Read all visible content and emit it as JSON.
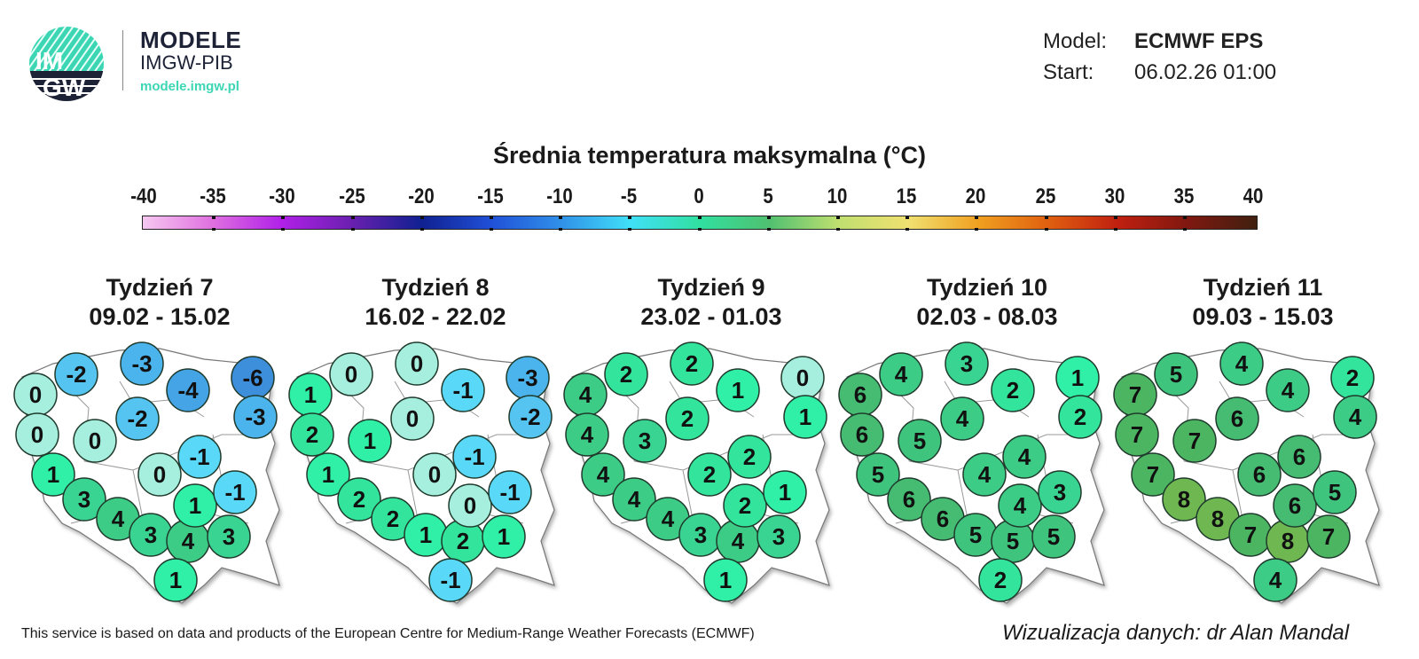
{
  "header": {
    "logo_text_top": "IM",
    "logo_text_bottom": "GW",
    "brand_title": "MODELE",
    "brand_subtitle": "IMGW-PIB",
    "brand_url": "modele.imgw.pl",
    "model_label": "Model:",
    "model_value": "ECMWF EPS",
    "start_label": "Start:",
    "start_value": "06.02.26 01:00"
  },
  "title": "Średnia temperatura maksymalna (°C)",
  "colorbar": {
    "ticks": [
      "-40",
      "-35",
      "-30",
      "-25",
      "-20",
      "-15",
      "-10",
      "-5",
      "0",
      "5",
      "10",
      "15",
      "20",
      "25",
      "30",
      "35",
      "40"
    ],
    "colors": [
      "#f6c8f0",
      "#e070e0",
      "#b020e8",
      "#6a20b0",
      "#102090",
      "#2050d8",
      "#3090e8",
      "#40e0f8",
      "#30e0a0",
      "#50c070",
      "#c0e070",
      "#f0e070",
      "#f0a020",
      "#e06010",
      "#c02010",
      "#801810",
      "#402010"
    ]
  },
  "value_colors": {
    "-6": "#3d8fdc",
    "-5": "#4099e0",
    "-4": "#44a4e6",
    "-3": "#4cb4ec",
    "-2": "#55c4f0",
    "-1": "#5ad8f8",
    "0": "#a6eedd",
    "1": "#2ff0a6",
    "2": "#33e59c",
    "3": "#3ad492",
    "4": "#3ccc86",
    "5": "#3fc47e",
    "6": "#45bc72",
    "7": "#4cb562",
    "8": "#6fb851"
  },
  "weeks": [
    {
      "label": "Tydzień 7",
      "dates": "09.02 - 15.02",
      "values": [
        0,
        -2,
        -3,
        -4,
        -6,
        -3,
        -2,
        0,
        0,
        1,
        3,
        4,
        3,
        4,
        3,
        1,
        0,
        -1,
        1,
        -1
      ]
    },
    {
      "label": "Tydzień 8",
      "dates": "16.02 - 22.02",
      "values": [
        1,
        0,
        0,
        -1,
        -3,
        -2,
        0,
        2,
        1,
        1,
        2,
        2,
        1,
        2,
        1,
        -1,
        0,
        -1,
        0,
        -1
      ]
    },
    {
      "label": "Tydzień 9",
      "dates": "23.02 - 01.03",
      "values": [
        4,
        2,
        2,
        1,
        0,
        1,
        2,
        4,
        3,
        4,
        4,
        4,
        3,
        4,
        3,
        1,
        2,
        2,
        2,
        1
      ]
    },
    {
      "label": "Tydzień 10",
      "dates": "02.03 - 08.03",
      "values": [
        6,
        4,
        3,
        2,
        1,
        2,
        4,
        6,
        5,
        5,
        6,
        6,
        5,
        5,
        5,
        2,
        4,
        4,
        4,
        3
      ]
    },
    {
      "label": "Tydzień 11",
      "dates": "09.03 - 15.03",
      "values": [
        7,
        5,
        4,
        4,
        2,
        4,
        6,
        7,
        7,
        7,
        8,
        8,
        7,
        8,
        7,
        4,
        6,
        6,
        6,
        5
      ]
    }
  ],
  "footer": {
    "disclaimer": "This service is based on data and products of the European Centre for Medium-Range Weather Forecasts (ECMWF)",
    "credit": "Wizualizacja danych: dr Alan Mandal"
  }
}
